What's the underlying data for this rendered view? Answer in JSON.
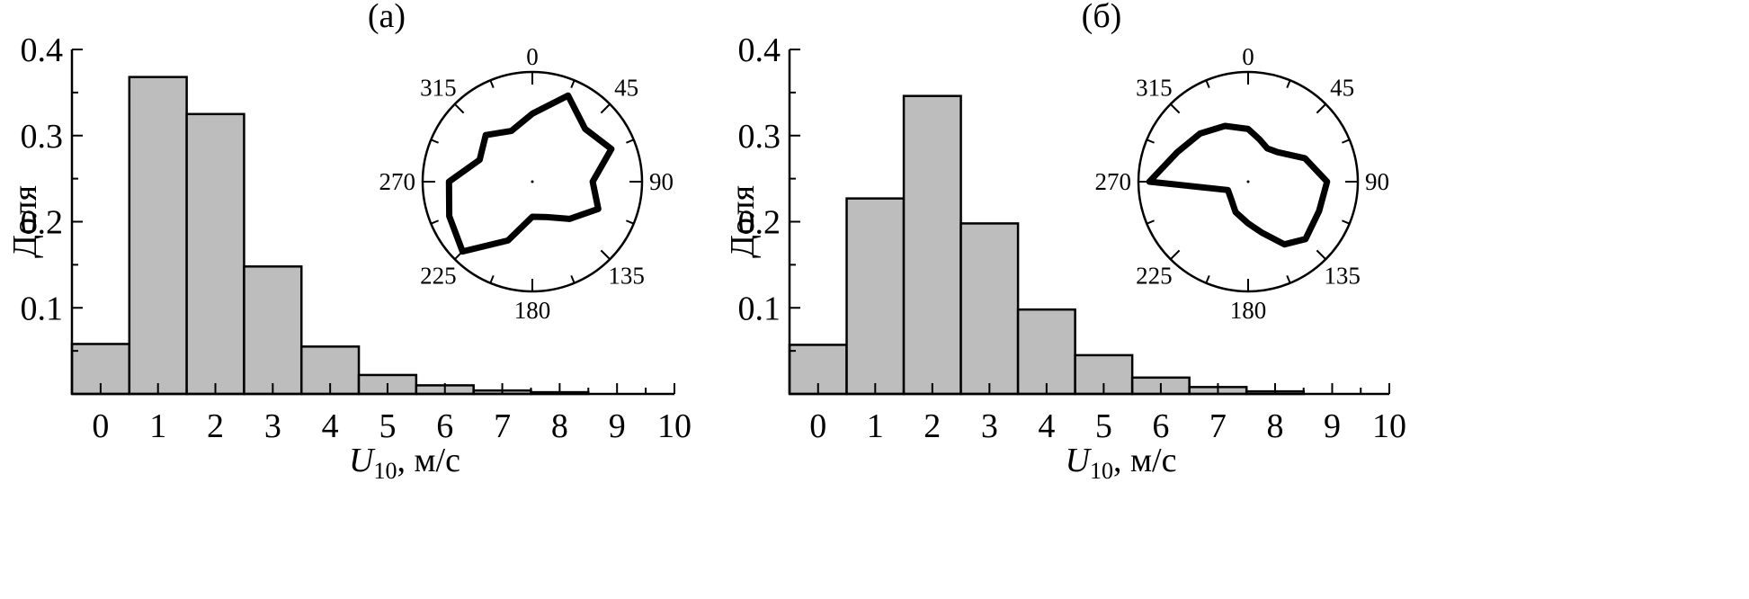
{
  "chart_data": [
    {
      "type": "bar",
      "title": "(а)",
      "xlabel_var": "U",
      "xlabel_sub": "10",
      "xlabel_units": ", м/с",
      "ylabel": "Доля",
      "xlim": [
        -0.5,
        10
      ],
      "ylim": [
        0,
        0.4
      ],
      "x_ticks": [
        "0",
        "1",
        "2",
        "3",
        "4",
        "5",
        "6",
        "7",
        "8",
        "9",
        "10"
      ],
      "y_ticks": [
        "0.1",
        "0.2",
        "0.3",
        "0.4"
      ],
      "categories": [
        0,
        1,
        2,
        3,
        4,
        5,
        6,
        7,
        8
      ],
      "values": [
        0.058,
        0.368,
        0.325,
        0.148,
        0.055,
        0.022,
        0.01,
        0.004,
        0.002
      ],
      "inset": {
        "type": "polar-line",
        "angle_labels": [
          "0",
          "45",
          "90",
          "135",
          "180",
          "225",
          "270",
          "315"
        ],
        "r_max": 1.0,
        "angles_deg": [
          0,
          22.5,
          45,
          67.5,
          90,
          112.5,
          135,
          157.5,
          180,
          202.5,
          225,
          247.5,
          270,
          292.5,
          315,
          337.5
        ],
        "radii": [
          0.62,
          0.85,
          0.68,
          0.78,
          0.55,
          0.65,
          0.48,
          0.35,
          0.32,
          0.58,
          0.9,
          0.82,
          0.76,
          0.52,
          0.6,
          0.5
        ]
      }
    },
    {
      "type": "bar",
      "title": "(б)",
      "xlabel_var": "U",
      "xlabel_sub": "10",
      "xlabel_units": ", м/с",
      "ylabel": "Доля",
      "xlim": [
        -0.5,
        10
      ],
      "ylim": [
        0,
        0.4
      ],
      "x_ticks": [
        "0",
        "1",
        "2",
        "3",
        "4",
        "5",
        "6",
        "7",
        "8",
        "9",
        "10"
      ],
      "y_ticks": [
        "0.1",
        "0.2",
        "0.3",
        "0.4"
      ],
      "categories": [
        0,
        1,
        2,
        3,
        4,
        5,
        6,
        7,
        8
      ],
      "values": [
        0.057,
        0.227,
        0.346,
        0.198,
        0.098,
        0.045,
        0.019,
        0.008,
        0.003
      ],
      "inset": {
        "type": "polar-line",
        "angles_deg": [
          0,
          15,
          30,
          45,
          67.5,
          90,
          112.5,
          135,
          150,
          165,
          180,
          202.5,
          225,
          247.5,
          270,
          292.5,
          315,
          337.5
        ],
        "radii": [
          0.48,
          0.4,
          0.35,
          0.38,
          0.56,
          0.72,
          0.7,
          0.74,
          0.66,
          0.48,
          0.38,
          0.3,
          0.22,
          0.2,
          0.9,
          0.7,
          0.62,
          0.55
        ],
        "angle_labels": [
          "0",
          "45",
          "90",
          "135",
          "180",
          "225",
          "270",
          "315"
        ],
        "r_max": 1.0
      }
    }
  ]
}
